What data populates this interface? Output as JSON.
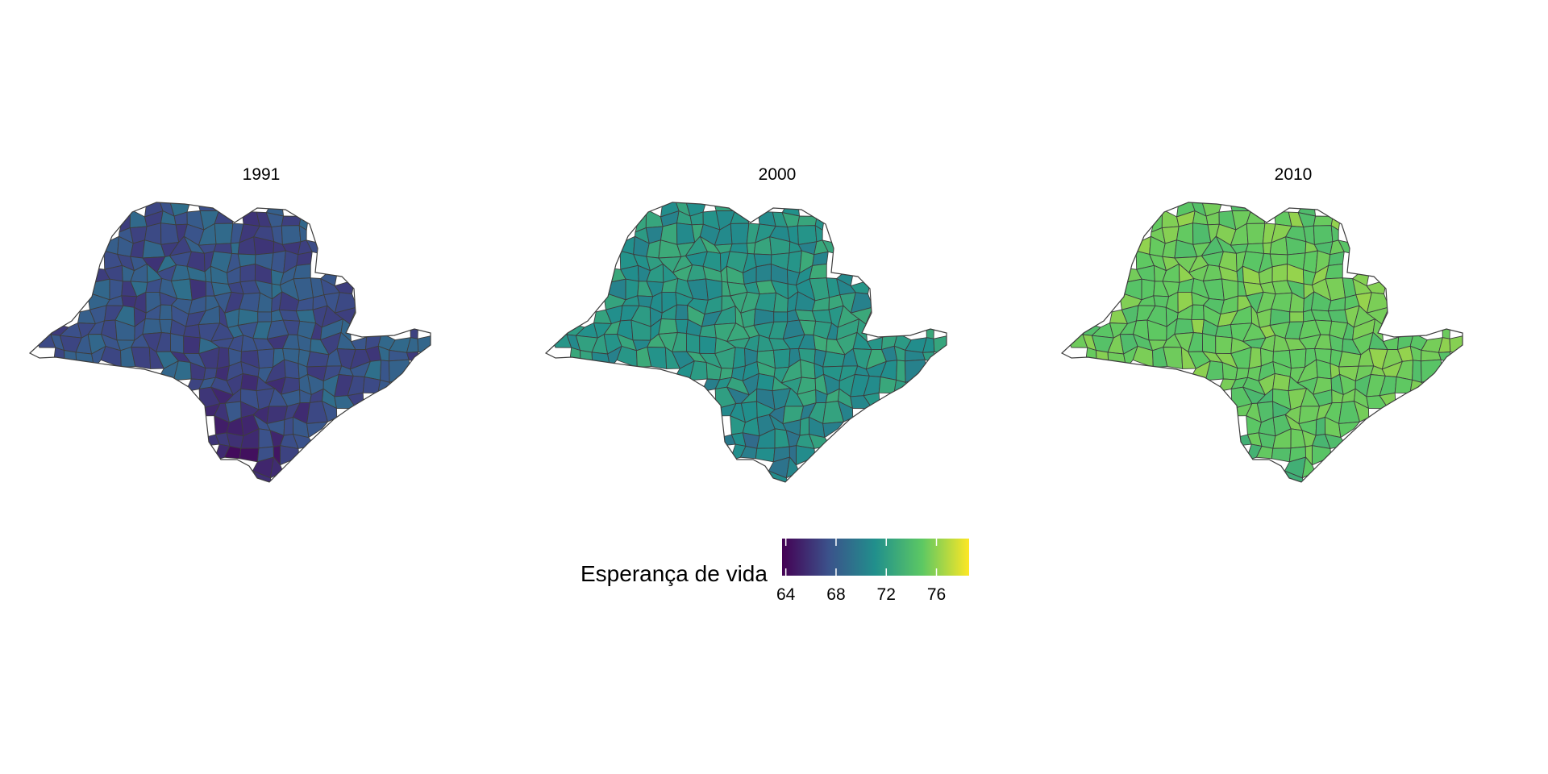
{
  "panels": [
    {
      "title": "1991",
      "mean": 67.6,
      "spread": 1.6,
      "south_shift": -1.4
    },
    {
      "title": "2000",
      "mean": 71.6,
      "spread": 1.4,
      "south_shift": -1.0
    },
    {
      "title": "2010",
      "mean": 75.1,
      "spread": 1.1,
      "south_shift": -0.6
    }
  ],
  "legend": {
    "title": "Esperança de vida",
    "min": 63.7,
    "max": 78.6,
    "ticks": [
      "64",
      "68",
      "72",
      "76"
    ],
    "tick_values": [
      64,
      68,
      72,
      76
    ],
    "palette": [
      "#440154",
      "#3b528b",
      "#21908c",
      "#5dc863",
      "#fde725"
    ]
  },
  "chart_data": {
    "type": "choropleth",
    "facets": [
      "1991",
      "2000",
      "2010"
    ],
    "fill_variable": "Esperança de vida",
    "scale": "viridis",
    "range": [
      63.7,
      78.6
    ],
    "ticks": [
      64,
      68,
      72,
      76
    ]
  }
}
